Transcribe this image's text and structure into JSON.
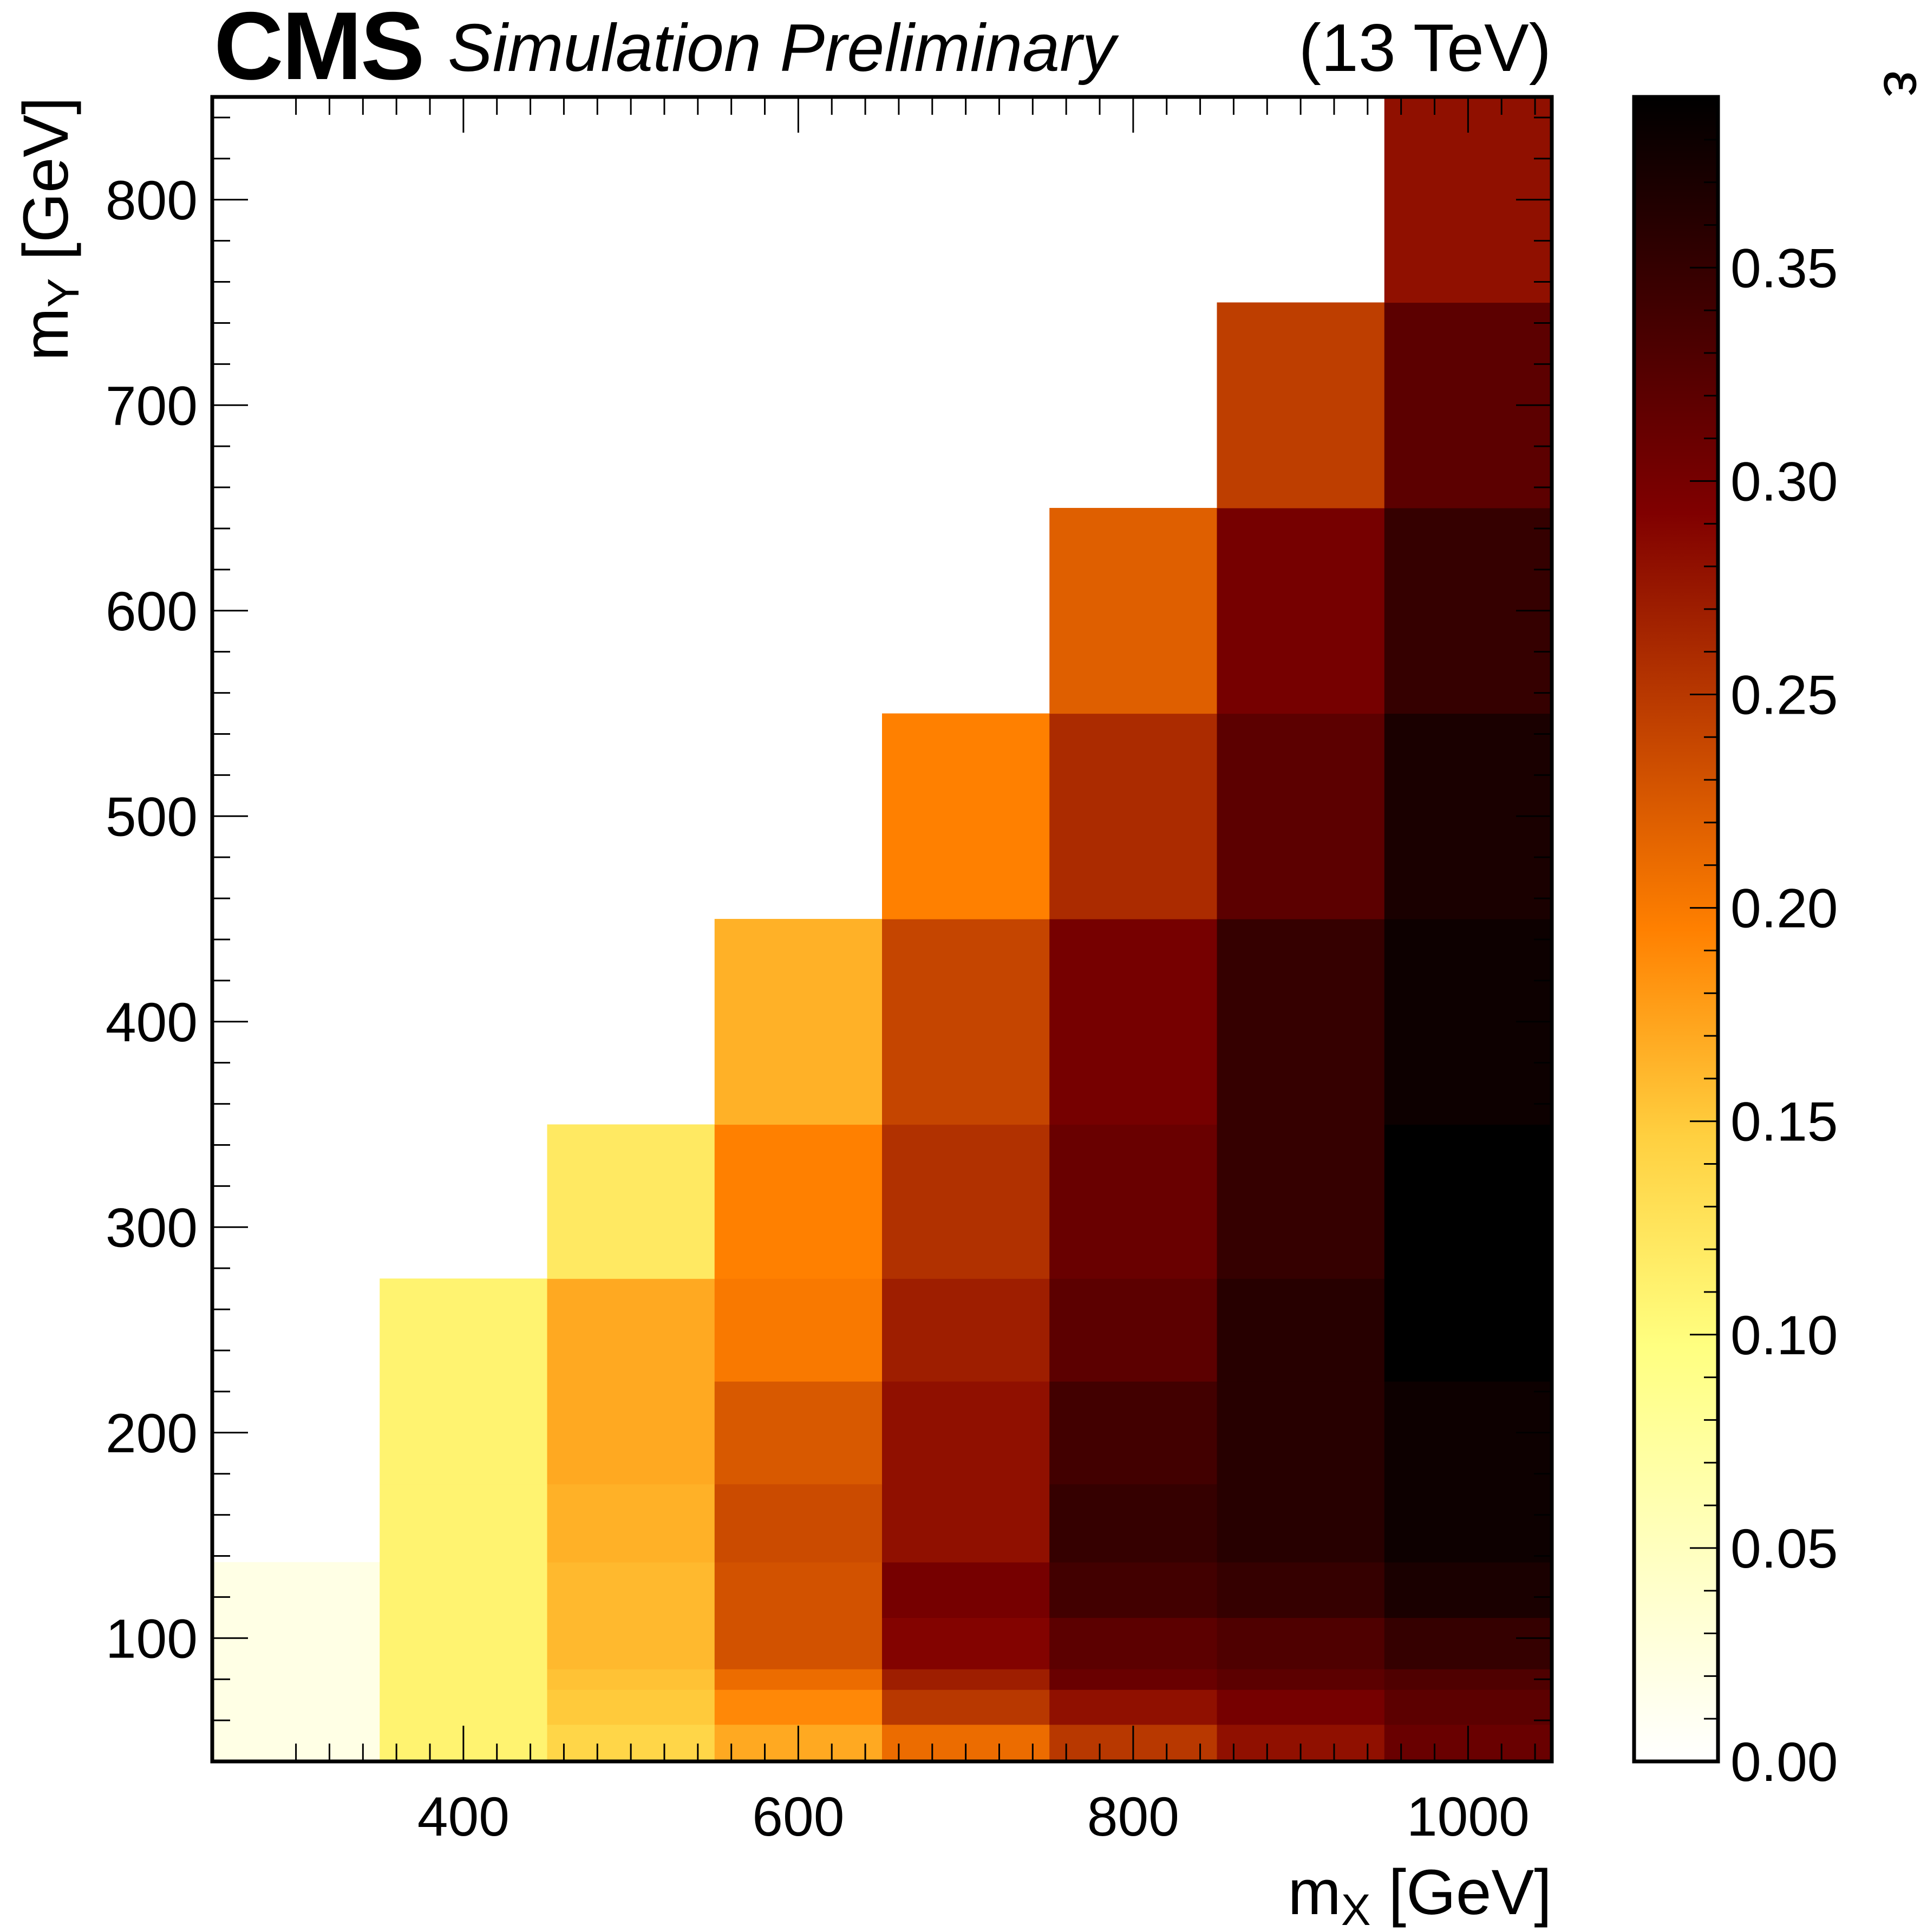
{
  "header": {
    "experiment": "CMS",
    "status": "Simulation Preliminary",
    "energy": "(13 TeV)"
  },
  "chart_data": {
    "type": "heatmap",
    "title": "",
    "xlabel": {
      "base": "m",
      "sub": "X",
      "unit": " [GeV]"
    },
    "ylabel": {
      "base": "m",
      "sub": "Y",
      "unit": " [GeV]"
    },
    "zlabel": "ε",
    "xlim": [
      250,
      1050
    ],
    "ylim": [
      40,
      850
    ],
    "zlim": [
      0.0,
      0.39
    ],
    "x_ticks": [
      400,
      600,
      800,
      1000
    ],
    "y_ticks": [
      100,
      200,
      300,
      400,
      500,
      600,
      700,
      800
    ],
    "z_ticks": [
      "0.00",
      "0.05",
      "0.10",
      "0.15",
      "0.20",
      "0.25",
      "0.30",
      "0.35"
    ],
    "z_tick_values": [
      0.0,
      0.05,
      0.1,
      0.15,
      0.2,
      0.25,
      0.3,
      0.35
    ],
    "colormap": [
      "#ffffff",
      "#ffffc0",
      "#ffff80",
      "#ffd040",
      "#ff8000",
      "#c04000",
      "#800000",
      "#400000",
      "#000000"
    ],
    "x_bin_edges": [
      250,
      350,
      450,
      550,
      650,
      750,
      850,
      950,
      1050
    ],
    "y_bin_edges": [
      40,
      58,
      75,
      85,
      110,
      137,
      175,
      225,
      275,
      350,
      450,
      550,
      650,
      750,
      850
    ],
    "z_values": [
      [
        0.02,
        0.11,
        0.14,
        0.17,
        0.21,
        0.25,
        0.28,
        0.31
      ],
      [
        0.02,
        0.11,
        0.15,
        0.19,
        0.25,
        0.28,
        0.3,
        0.32
      ],
      [
        0.02,
        0.11,
        0.155,
        0.21,
        0.27,
        0.31,
        0.32,
        0.33
      ],
      [
        0.02,
        0.11,
        0.16,
        0.23,
        0.29,
        0.32,
        0.33,
        0.35
      ],
      [
        0.02,
        0.11,
        0.16,
        0.23,
        0.3,
        0.34,
        0.35,
        0.37
      ],
      [
        null,
        0.11,
        0.165,
        0.235,
        0.28,
        0.35,
        0.36,
        0.38
      ],
      [
        null,
        0.11,
        0.17,
        0.225,
        0.28,
        0.34,
        0.36,
        0.38
      ],
      [
        null,
        0.11,
        0.17,
        0.2,
        0.27,
        0.32,
        0.36,
        0.39
      ],
      [
        null,
        null,
        0.12,
        0.195,
        0.255,
        0.31,
        0.35,
        0.39
      ],
      [
        null,
        null,
        null,
        0.165,
        0.24,
        0.3,
        0.35,
        0.38
      ],
      [
        null,
        null,
        null,
        null,
        0.195,
        0.26,
        0.32,
        0.37
      ],
      [
        null,
        null,
        null,
        null,
        null,
        0.22,
        0.3,
        0.35
      ],
      [
        null,
        null,
        null,
        null,
        null,
        null,
        0.245,
        0.32
      ],
      [
        null,
        null,
        null,
        null,
        null,
        null,
        null,
        0.28
      ]
    ]
  }
}
